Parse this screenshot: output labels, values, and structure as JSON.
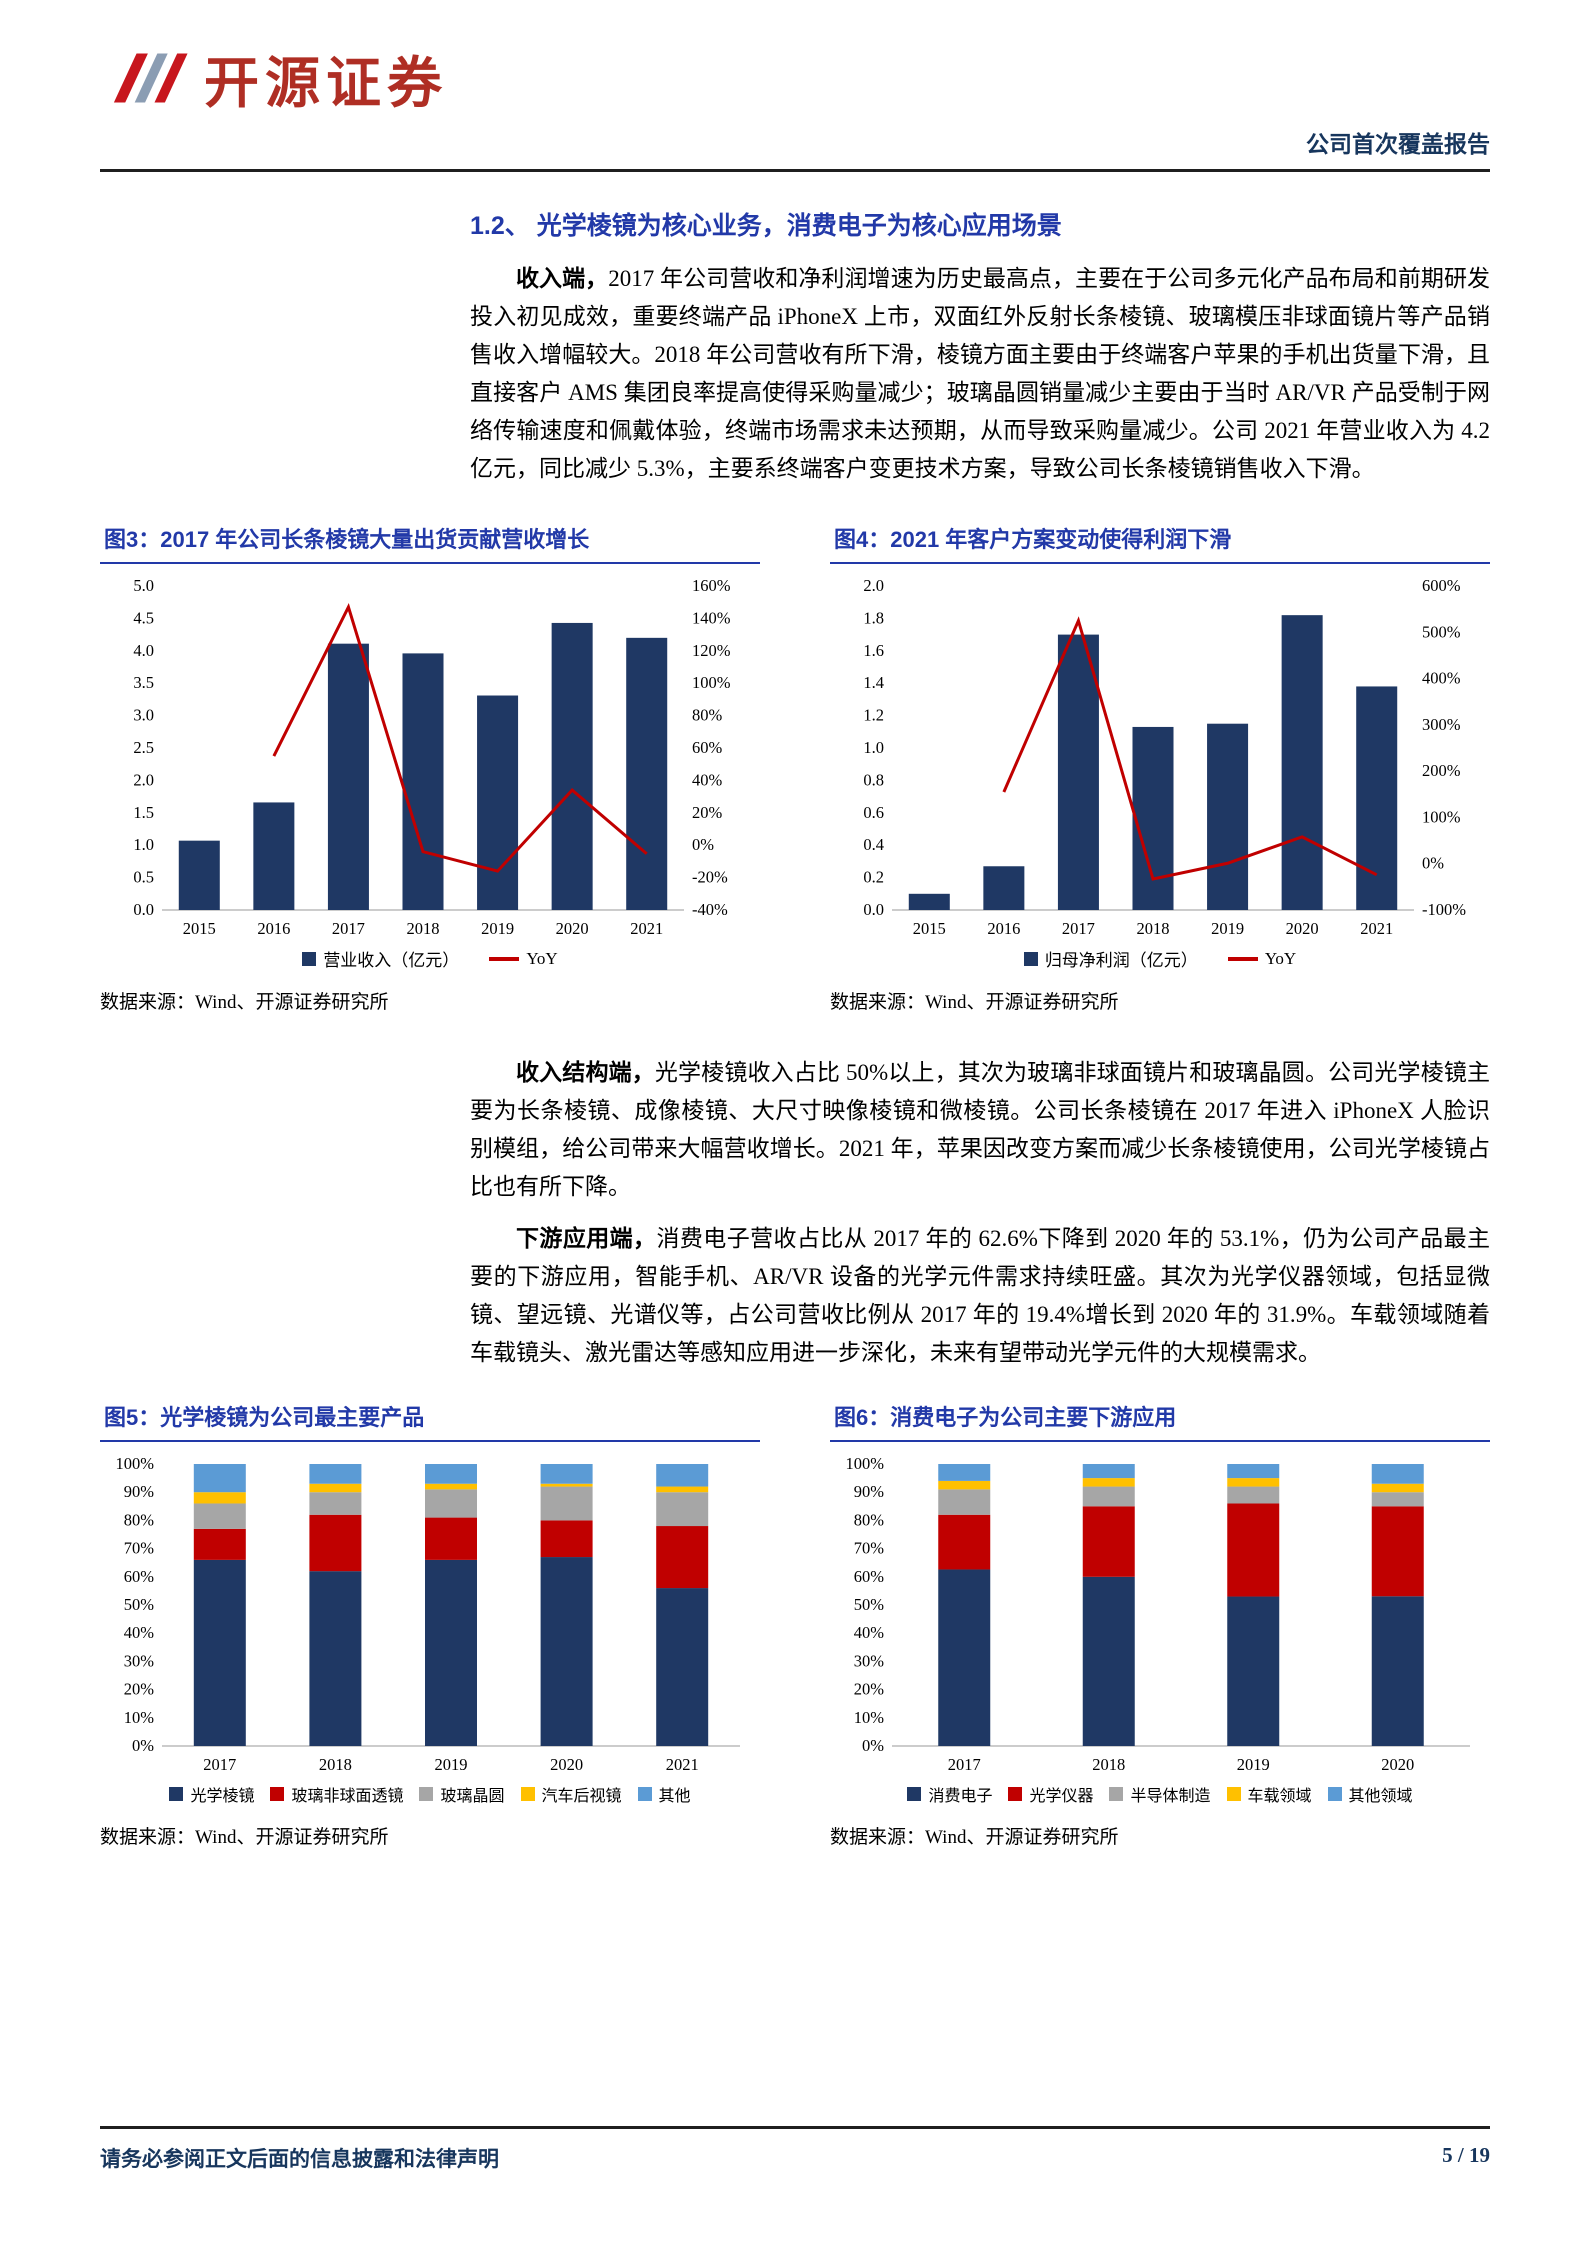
{
  "header": {
    "brand": "开源证券",
    "report_type": "公司首次覆盖报告"
  },
  "section": {
    "title": "1.2、 光学棱镜为核心业务，消费电子为核心应用场景"
  },
  "paragraphs": [
    {
      "lead": "收入端，",
      "text": "2017 年公司营收和净利润增速为历史最高点，主要在于公司多元化产品布局和前期研发投入初见成效，重要终端产品 iPhoneX 上市，双面红外反射长条棱镜、玻璃模压非球面镜片等产品销售收入增幅较大。2018 年公司营收有所下滑，棱镜方面主要由于终端客户苹果的手机出货量下滑，且直接客户 AMS 集团良率提高使得采购量减少；玻璃晶圆销量减少主要由于当时 AR/VR 产品受制于网络传输速度和佩戴体验，终端市场需求未达预期，从而导致采购量减少。公司 2021 年营业收入为 4.2 亿元，同比减少 5.3%，主要系终端客户变更技术方案，导致公司长条棱镜销售收入下滑。"
    },
    {
      "lead": "收入结构端，",
      "text": "光学棱镜收入占比 50%以上，其次为玻璃非球面镜片和玻璃晶圆。公司光学棱镜主要为长条棱镜、成像棱镜、大尺寸映像棱镜和微棱镜。公司长条棱镜在 2017 年进入 iPhoneX 人脸识别模组，给公司带来大幅营收增长。2021 年，苹果因改变方案而减少长条棱镜使用，公司光学棱镜占比也有所下降。"
    },
    {
      "lead": "下游应用端，",
      "text": "消费电子营收占比从 2017 年的 62.6%下降到 2020 年的 53.1%，仍为公司产品最主要的下游应用，智能手机、AR/VR 设备的光学元件需求持续旺盛。其次为光学仪器领域，包括显微镜、望远镜、光谱仪等，占公司营收比例从 2017 年的 19.4%增长到 2020 年的 31.9%。车载领域随着车载镜头、激光雷达等感知应用进一步深化，未来有望带动光学元件的大规模需求。"
    }
  ],
  "figures": [
    {
      "caption": "图3：2017 年公司长条棱镜大量出货贡献营收增长",
      "source": "数据来源：Wind、开源证券研究所"
    },
    {
      "caption": "图4：2021 年客户方案变动使得利润下滑",
      "source": "数据来源：Wind、开源证券研究所"
    },
    {
      "caption": "图5：光学棱镜为公司最主要产品",
      "source": "数据来源：Wind、开源证券研究所"
    },
    {
      "caption": "图6：消费电子为公司主要下游应用",
      "source": "数据来源：Wind、开源证券研究所"
    }
  ],
  "chart_data": [
    {
      "type": "bar",
      "title": "2017 年公司长条棱镜大量出货贡献营收增长",
      "categories": [
        "2015",
        "2016",
        "2017",
        "2018",
        "2019",
        "2020",
        "2021"
      ],
      "series": [
        {
          "name": "营业收入（亿元）",
          "type": "bar",
          "axis": "left",
          "color": "#1F3864",
          "values": [
            1.07,
            1.66,
            4.11,
            3.96,
            3.31,
            4.43,
            4.2
          ]
        },
        {
          "name": "YoY",
          "type": "line",
          "axis": "right",
          "color": "#C00000",
          "values": [
            null,
            55,
            147,
            -4,
            -16,
            34,
            -5.3
          ]
        }
      ],
      "left_axis": {
        "min": 0,
        "max": 5,
        "step": 0.5,
        "format": "1dp"
      },
      "right_axis": {
        "min": -40,
        "max": 160,
        "step": 20,
        "format": "pct"
      },
      "grid": false,
      "legend_position": "bottom"
    },
    {
      "type": "bar",
      "title": "2021 年客户方案变动使得利润下滑",
      "categories": [
        "2015",
        "2016",
        "2017",
        "2018",
        "2019",
        "2020",
        "2021"
      ],
      "series": [
        {
          "name": "归母净利润（亿元）",
          "type": "bar",
          "axis": "left",
          "color": "#1F3864",
          "values": [
            0.1,
            0.27,
            1.7,
            1.13,
            1.15,
            1.82,
            1.38
          ]
        },
        {
          "name": "YoY",
          "type": "line",
          "axis": "right",
          "color": "#C00000",
          "values": [
            null,
            155,
            525,
            -33,
            1,
            58,
            -24
          ]
        }
      ],
      "left_axis": {
        "min": 0,
        "max": 2,
        "step": 0.2,
        "format": "1dp"
      },
      "right_axis": {
        "min": -100,
        "max": 600,
        "step": 100,
        "format": "pct"
      },
      "grid": false,
      "legend_position": "bottom"
    },
    {
      "type": "stacked-bar-100",
      "title": "光学棱镜为公司最主要产品",
      "categories": [
        "2017",
        "2018",
        "2019",
        "2020",
        "2021"
      ],
      "series": [
        {
          "name": "光学棱镜",
          "color": "#1F3864",
          "values": [
            66,
            62,
            66,
            67,
            56
          ]
        },
        {
          "name": "玻璃非球面透镜",
          "color": "#C00000",
          "values": [
            11,
            20,
            15,
            13,
            22
          ]
        },
        {
          "name": "玻璃晶圆",
          "color": "#A6A6A6",
          "values": [
            9,
            8,
            10,
            12,
            12
          ]
        },
        {
          "name": "汽车后视镜",
          "color": "#FFC000",
          "values": [
            4,
            3,
            2,
            1,
            2
          ]
        },
        {
          "name": "其他",
          "color": "#5B9BD5",
          "values": [
            10,
            7,
            7,
            7,
            8
          ]
        }
      ],
      "left_axis": {
        "min": 0,
        "max": 100,
        "step": 10,
        "format": "pct"
      },
      "grid": false,
      "legend_position": "bottom"
    },
    {
      "type": "stacked-bar-100",
      "title": "消费电子为公司主要下游应用",
      "categories": [
        "2017",
        "2018",
        "2019",
        "2020"
      ],
      "series": [
        {
          "name": "消费电子",
          "color": "#1F3864",
          "values": [
            62.6,
            60.0,
            53.0,
            53.1
          ]
        },
        {
          "name": "光学仪器",
          "color": "#C00000",
          "values": [
            19.4,
            25.0,
            33.0,
            31.9
          ]
        },
        {
          "name": "半导体制造",
          "color": "#A6A6A6",
          "values": [
            9.0,
            7.0,
            6.0,
            5.0
          ]
        },
        {
          "name": "车载领域",
          "color": "#FFC000",
          "values": [
            3.0,
            3.0,
            3.0,
            3.0
          ]
        },
        {
          "name": "其他领域",
          "color": "#5B9BD5",
          "values": [
            6.0,
            5.0,
            5.0,
            7.0
          ]
        }
      ],
      "left_axis": {
        "min": 0,
        "max": 100,
        "step": 10,
        "format": "pct"
      },
      "grid": false,
      "legend_position": "bottom"
    }
  ],
  "footer": {
    "disclaimer": "请务必参阅正文后面的信息披露和法律声明",
    "page": "5 / 19"
  },
  "colors": {
    "navy": "#1F3864",
    "red": "#C00000",
    "gray": "#A6A6A6",
    "gold": "#FFC000",
    "sky": "#5B9BD5",
    "heading_blue": "#2239A8",
    "brand_red": "#AF2E24",
    "footer_navy": "#17365D"
  }
}
